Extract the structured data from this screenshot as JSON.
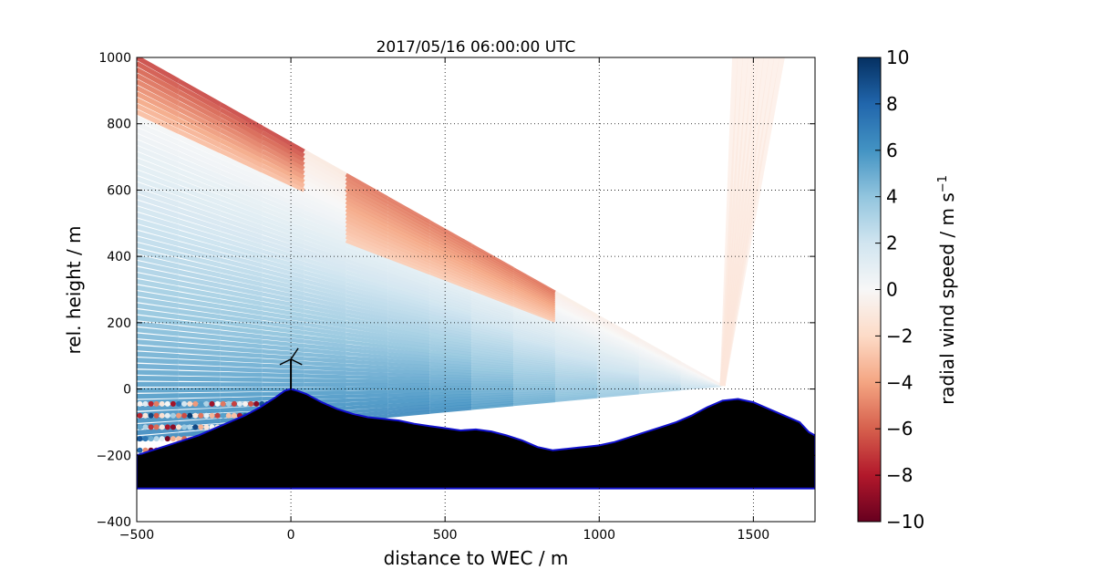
{
  "chart_data": {
    "type": "heatmap",
    "title": "2017/05/16 06:00:00 UTC",
    "xlabel": "distance to WEC / m",
    "ylabel": "rel. height / m",
    "xlim": [
      -500,
      1700
    ],
    "ylim": [
      -400,
      1000
    ],
    "xticks": [
      -500,
      0,
      500,
      1000,
      1500
    ],
    "yticks": [
      -400,
      -200,
      0,
      200,
      400,
      600,
      800,
      1000
    ],
    "grid": true,
    "colormap": "RdBu",
    "colorbar": {
      "label_main": "radial wind speed / m s",
      "label_sup": "−1",
      "min": -10,
      "max": 10,
      "ticks": [
        10,
        8,
        6,
        4,
        2,
        0,
        -2,
        -4,
        -6,
        -8,
        -10
      ],
      "tick_labels": [
        "10",
        "8",
        "6",
        "4",
        "2",
        "0",
        "−2",
        "−4",
        "−6",
        "−8",
        "−10"
      ]
    },
    "lidar_position": [
      1400,
      10
    ],
    "scan_edge_points": [
      [
        1400,
        10
      ],
      [
        1600,
        1000
      ],
      [
        -500,
        1000
      ],
      [
        -500,
        0
      ],
      [
        700,
        -140
      ]
    ],
    "turbine": {
      "x": 0,
      "hub_height": 90
    },
    "terrain_profile": [
      [
        -500,
        -200
      ],
      [
        -450,
        -185
      ],
      [
        -400,
        -170
      ],
      [
        -350,
        -155
      ],
      [
        -300,
        -140
      ],
      [
        -250,
        -120
      ],
      [
        -200,
        -100
      ],
      [
        -150,
        -80
      ],
      [
        -100,
        -55
      ],
      [
        -50,
        -25
      ],
      [
        -20,
        -5
      ],
      [
        0,
        0
      ],
      [
        20,
        -5
      ],
      [
        50,
        -15
      ],
      [
        100,
        -40
      ],
      [
        150,
        -60
      ],
      [
        200,
        -75
      ],
      [
        250,
        -85
      ],
      [
        300,
        -90
      ],
      [
        350,
        -95
      ],
      [
        400,
        -105
      ],
      [
        450,
        -112
      ],
      [
        500,
        -118
      ],
      [
        550,
        -125
      ],
      [
        600,
        -122
      ],
      [
        650,
        -128
      ],
      [
        700,
        -140
      ],
      [
        750,
        -155
      ],
      [
        800,
        -175
      ],
      [
        850,
        -185
      ],
      [
        900,
        -180
      ],
      [
        950,
        -175
      ],
      [
        1000,
        -170
      ],
      [
        1050,
        -160
      ],
      [
        1100,
        -145
      ],
      [
        1150,
        -130
      ],
      [
        1200,
        -115
      ],
      [
        1250,
        -100
      ],
      [
        1300,
        -80
      ],
      [
        1350,
        -55
      ],
      [
        1400,
        -35
      ],
      [
        1450,
        -30
      ],
      [
        1500,
        -40
      ],
      [
        1550,
        -60
      ],
      [
        1600,
        -80
      ],
      [
        1650,
        -100
      ],
      [
        1680,
        -130
      ],
      [
        1700,
        -140
      ]
    ],
    "terrain_base": -300
  }
}
